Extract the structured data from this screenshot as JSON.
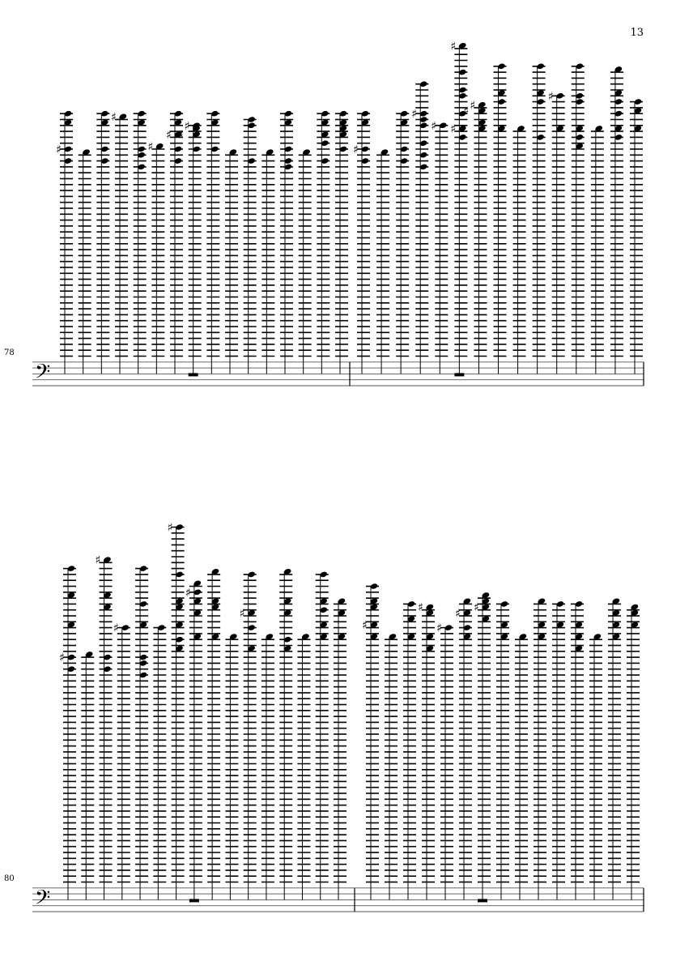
{
  "page_number": "13",
  "clef": "bass",
  "pitch_unit": "diatonic steps above bottom staff line",
  "colors": {
    "ink": "#000000",
    "staff": "#000000"
  },
  "systems": [
    {
      "measure_number": "78",
      "measures": [
        {
          "rest_after_chord": 7,
          "chords": [
            {
              "notes": [
                92,
                89,
                80,
                76
              ],
              "sharps": [
                80
              ]
            },
            {
              "notes": [
                79
              ]
            },
            {
              "notes": [
                92,
                89,
                80,
                76
              ]
            },
            {
              "notes": [
                91
              ],
              "sharps": [
                91
              ]
            },
            {
              "notes": [
                92,
                89,
                80,
                78,
                74
              ]
            },
            {
              "notes": [
                81
              ],
              "sharps": [
                81
              ]
            },
            {
              "notes": [
                92,
                89,
                85,
                80,
                76
              ],
              "sharps": [
                85
              ]
            },
            {
              "notes": [
                88,
                87,
                85,
                80
              ],
              "sharps": [
                88,
                85
              ]
            },
            {
              "notes": [
                92,
                89,
                80
              ]
            },
            {
              "notes": [
                79
              ]
            },
            {
              "notes": [
                90,
                88,
                76
              ]
            },
            {
              "notes": [
                79
              ]
            },
            {
              "notes": [
                92,
                89,
                80,
                76,
                74
              ]
            },
            {
              "notes": [
                79
              ]
            },
            {
              "notes": [
                92,
                89,
                85,
                82,
                76
              ]
            },
            {
              "notes": [
                92,
                89,
                87,
                85,
                80
              ]
            }
          ]
        },
        {
          "rest_after_chord": 5,
          "chords": [
            {
              "notes": [
                92,
                89,
                80,
                76
              ],
              "sharps": [
                80
              ]
            },
            {
              "notes": [
                79
              ]
            },
            {
              "notes": [
                92,
                89,
                80,
                76
              ]
            },
            {
              "notes": [
                102,
                92,
                90,
                88,
                82,
                78,
                74
              ],
              "sharps": [
                92
              ]
            },
            {
              "notes": [
                88
              ],
              "sharps": [
                88
              ]
            },
            {
              "notes": [
                115,
                106,
                100,
                98,
                92,
                87,
                84
              ],
              "sharps": [
                115,
                87
              ]
            },
            {
              "notes": [
                95,
                93,
                89,
                87
              ],
              "sharps": [
                95,
                93
              ]
            },
            {
              "notes": [
                108,
                99,
                96,
                87
              ]
            },
            {
              "notes": [
                87
              ]
            },
            {
              "notes": [
                108,
                99,
                96,
                84
              ]
            },
            {
              "notes": [
                98,
                87
              ],
              "sharps": [
                98
              ]
            },
            {
              "notes": [
                108,
                98,
                96,
                87,
                84,
                81
              ]
            },
            {
              "notes": [
                87
              ]
            },
            {
              "notes": [
                107,
                99,
                96,
                92,
                87,
                84
              ]
            },
            {
              "notes": [
                96,
                93,
                87
              ]
            }
          ]
        }
      ]
    },
    {
      "measure_number": "80",
      "measures": [
        {
          "rest_after_chord": 7,
          "chords": [
            {
              "notes": [
                116,
                107,
                97,
                86,
                82
              ],
              "sharps": [
                86
              ]
            },
            {
              "notes": [
                87
              ]
            },
            {
              "notes": [
                119,
                107,
                103,
                86,
                82
              ],
              "sharps": [
                119
              ]
            },
            {
              "notes": [
                96
              ],
              "sharps": [
                96
              ]
            },
            {
              "notes": [
                116,
                104,
                97,
                86,
                84,
                80
              ]
            },
            {
              "notes": [
                96
              ]
            },
            {
              "notes": [
                130,
                114,
                105,
                103,
                97,
                92,
                89
              ],
              "sharps": [
                130
              ]
            },
            {
              "notes": [
                111,
                108,
                105,
                101,
                93
              ],
              "sharps": [
                108
              ]
            },
            {
              "notes": [
                115,
                105,
                103,
                93
              ]
            },
            {
              "notes": [
                93
              ]
            },
            {
              "notes": [
                114,
                101,
                96,
                89
              ],
              "sharps": [
                101
              ]
            },
            {
              "notes": [
                93
              ]
            },
            {
              "notes": [
                115,
                105,
                101,
                92,
                89
              ]
            },
            {
              "notes": [
                93
              ]
            },
            {
              "notes": [
                114,
                105,
                102,
                97,
                93
              ]
            },
            {
              "notes": [
                105,
                101,
                93
              ]
            }
          ]
        },
        {
          "rest_after_chord": 6,
          "chords": [
            {
              "notes": [
                110,
                105,
                103,
                97,
                93
              ],
              "sharps": [
                97
              ]
            },
            {
              "notes": [
                93
              ]
            },
            {
              "notes": [
                104,
                99,
                93
              ]
            },
            {
              "notes": [
                103,
                101,
                93,
                89
              ],
              "sharps": [
                103
              ]
            },
            {
              "notes": [
                96
              ],
              "sharps": [
                96
              ]
            },
            {
              "notes": [
                105,
                101,
                96,
                93
              ],
              "sharps": [
                101
              ]
            },
            {
              "notes": [
                107,
                105,
                103,
                99
              ],
              "sharps": [
                103
              ]
            },
            {
              "notes": [
                104,
                97,
                93
              ]
            },
            {
              "notes": [
                93
              ]
            },
            {
              "notes": [
                105,
                97,
                93
              ]
            },
            {
              "notes": [
                104,
                97
              ]
            },
            {
              "notes": [
                104,
                97,
                93,
                89
              ]
            },
            {
              "notes": [
                93
              ]
            },
            {
              "notes": [
                105,
                101,
                97,
                93
              ]
            },
            {
              "notes": [
                103,
                101,
                97
              ]
            }
          ]
        }
      ]
    }
  ]
}
